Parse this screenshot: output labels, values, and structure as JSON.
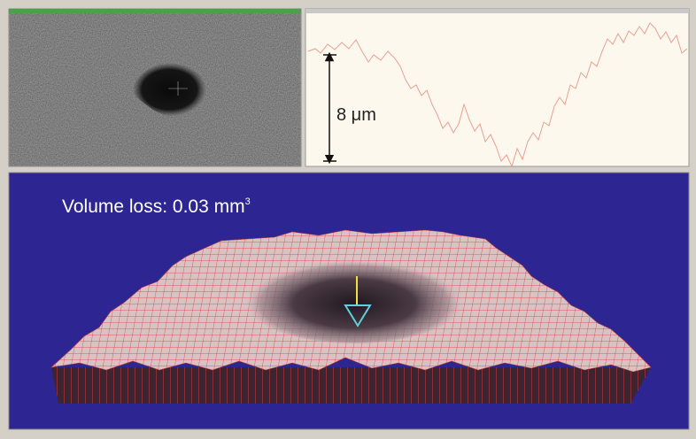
{
  "profile_panel": {
    "scale_label": "8 μm"
  },
  "surface_panel": {
    "volume_label": "Volume loss: 0.03 mm",
    "volume_exponent": "3"
  }
}
